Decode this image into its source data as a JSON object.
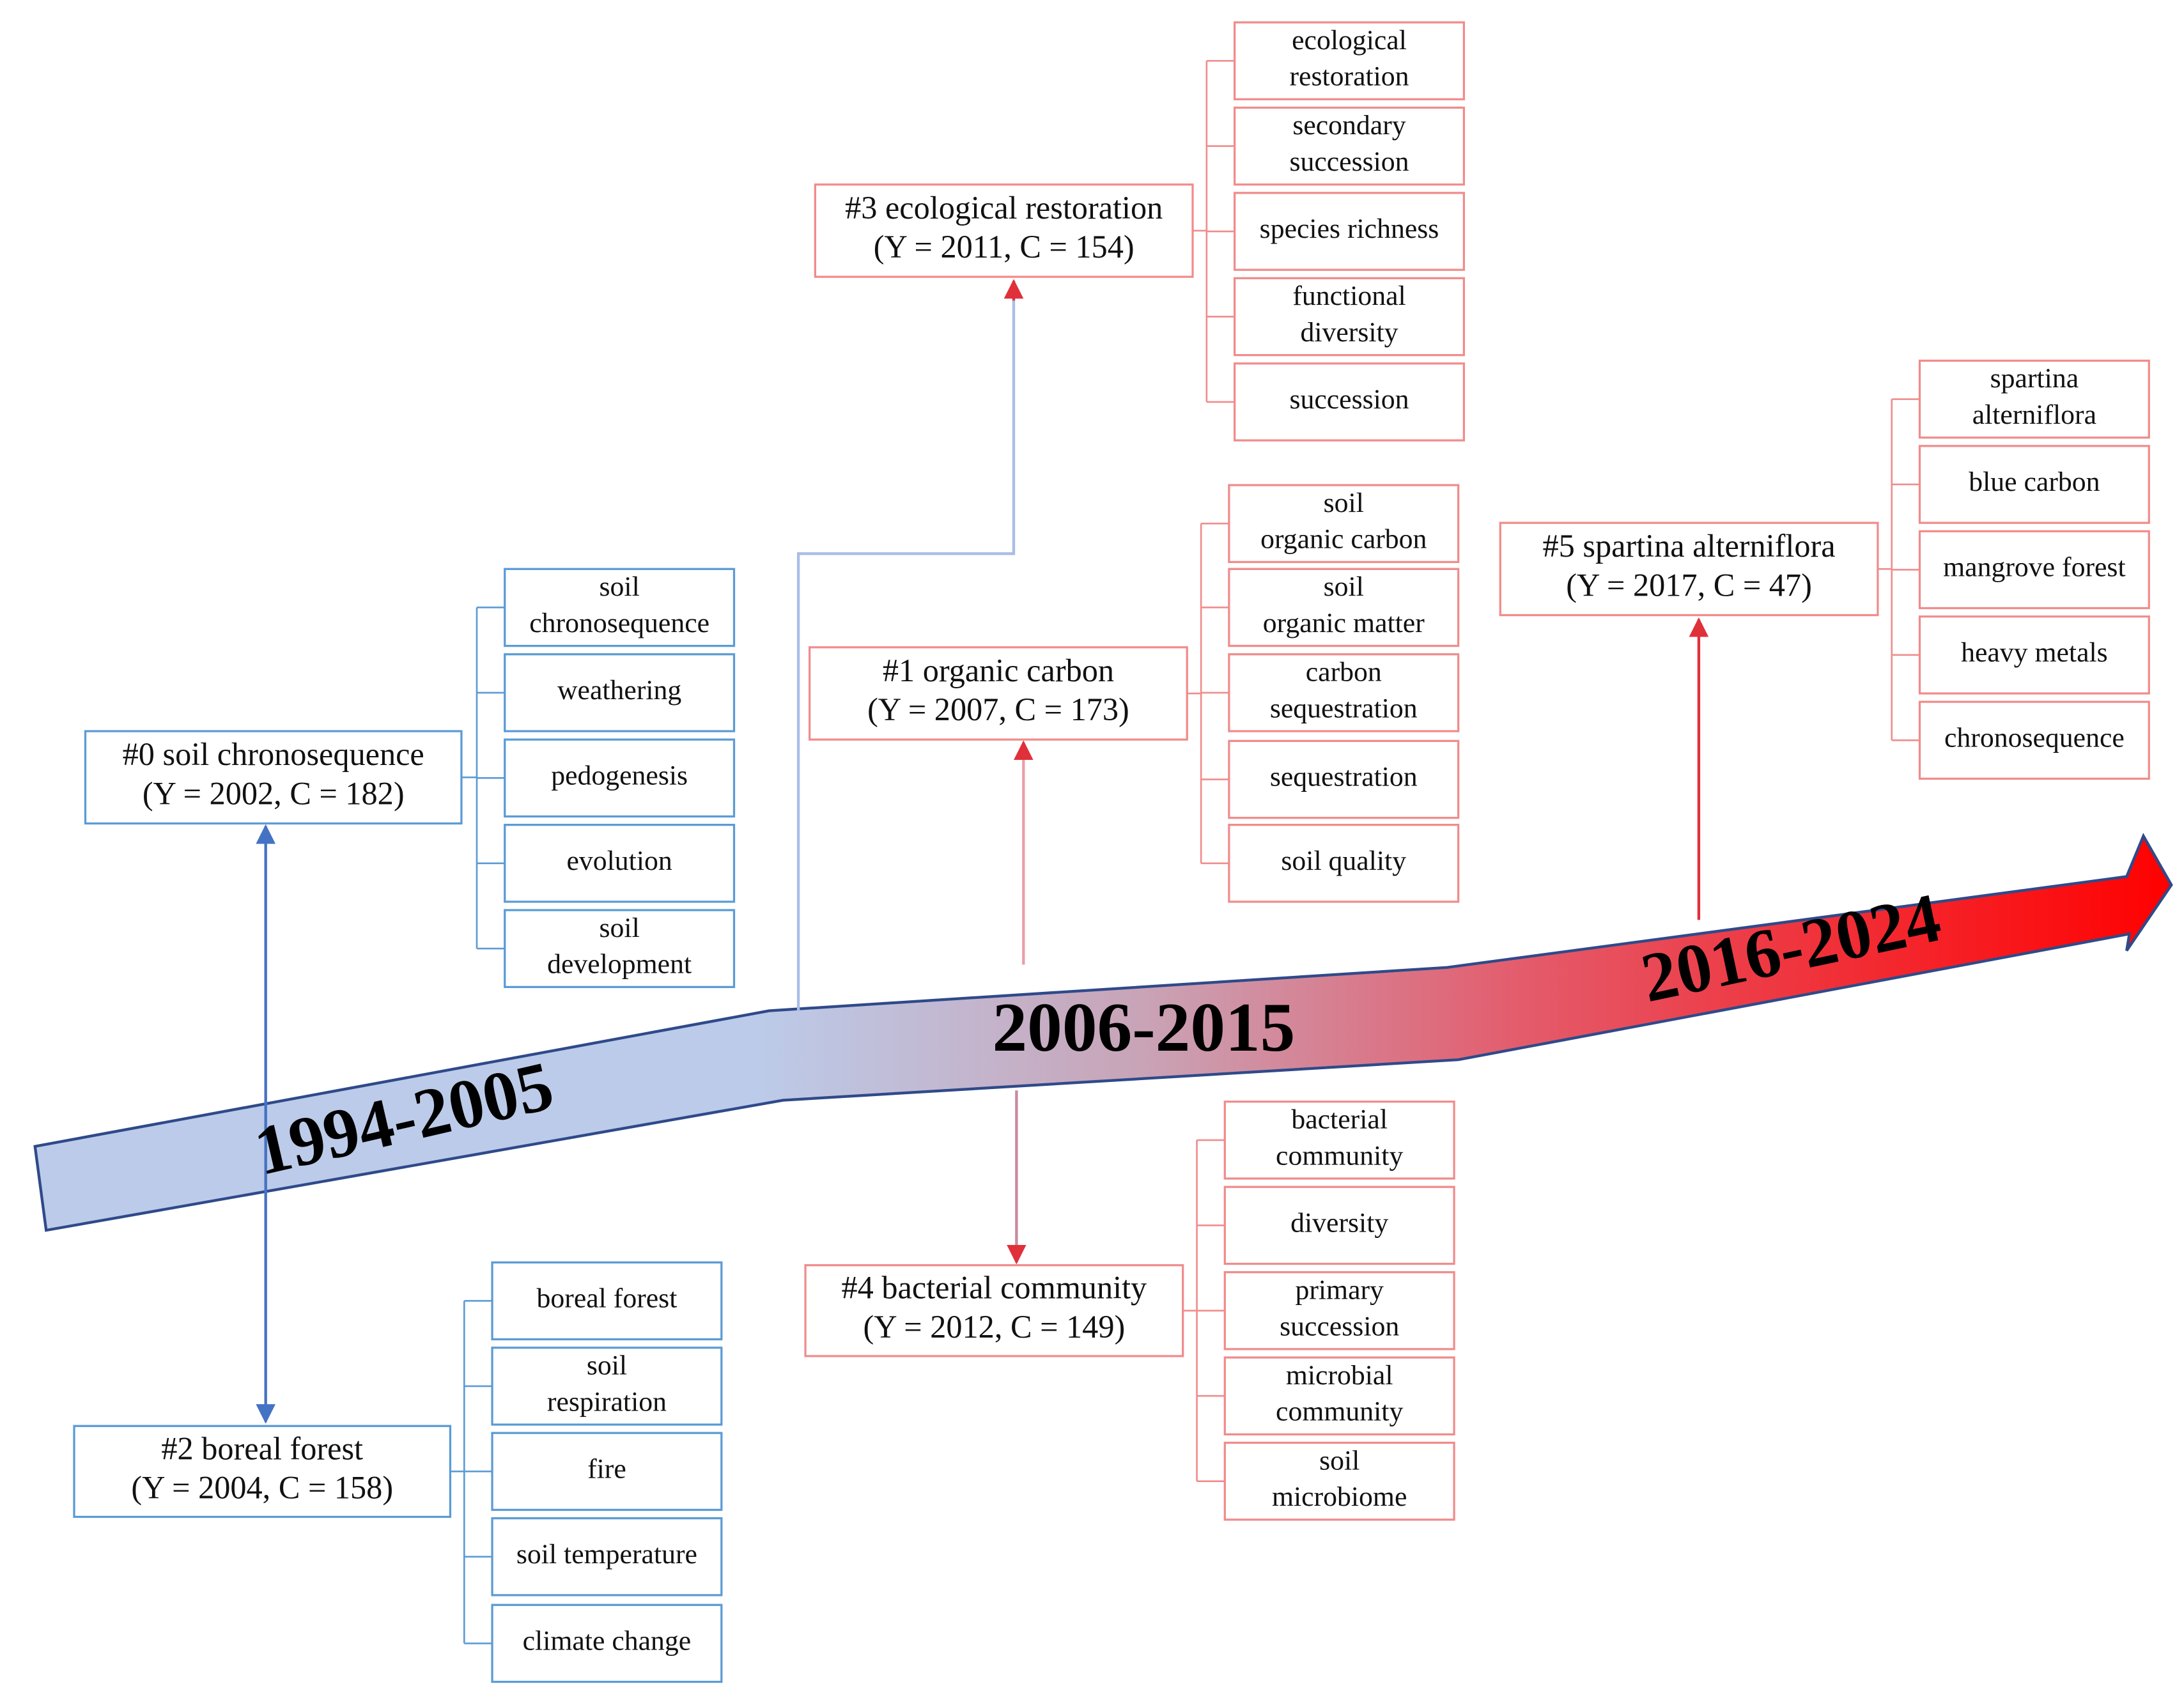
{
  "periods": [
    "1994-2005",
    "2006-2015",
    "2016-2024"
  ],
  "clusters": [
    {
      "label": "#0 soil chronosequence",
      "stats": "(Y = 2002, C = 182)",
      "keywords": [
        [
          "soil",
          "chronosequence"
        ],
        [
          "weathering"
        ],
        [
          "pedogenesis"
        ],
        [
          "evolution"
        ],
        [
          "soil",
          "development"
        ]
      ]
    },
    {
      "label": "#1 organic carbon",
      "stats": "(Y = 2007, C = 173)",
      "keywords": [
        [
          "soil",
          "organic carbon"
        ],
        [
          "soil",
          "organic matter"
        ],
        [
          "carbon",
          "sequestration"
        ],
        [
          "sequestration"
        ],
        [
          "soil quality"
        ]
      ]
    },
    {
      "label": "#2 boreal forest",
      "stats": "(Y = 2004, C = 158)",
      "keywords": [
        [
          "boreal forest"
        ],
        [
          "soil",
          "respiration"
        ],
        [
          "fire"
        ],
        [
          "soil temperature"
        ],
        [
          "climate change"
        ]
      ]
    },
    {
      "label": "#3 ecological restoration",
      "stats": "(Y = 2011, C = 154)",
      "keywords": [
        [
          "ecological",
          "restoration"
        ],
        [
          "secondary",
          "succession"
        ],
        [
          "species richness"
        ],
        [
          "functional",
          "diversity"
        ],
        [
          "succession"
        ]
      ]
    },
    {
      "label": "#4 bacterial community",
      "stats": "(Y = 2012, C = 149)",
      "keywords": [
        [
          "bacterial",
          "community"
        ],
        [
          "diversity"
        ],
        [
          "primary",
          "succession"
        ],
        [
          "microbial",
          "community"
        ],
        [
          "soil",
          "microbiome"
        ]
      ]
    },
    {
      "label": "#5 spartina alterniflora",
      "stats": "(Y = 2017, C = 47)",
      "keywords": [
        [
          "spartina",
          "alterniflora"
        ],
        [
          "blue carbon"
        ],
        [
          "mangrove forest"
        ],
        [
          "heavy metals"
        ],
        [
          "chronosequence"
        ]
      ]
    }
  ]
}
